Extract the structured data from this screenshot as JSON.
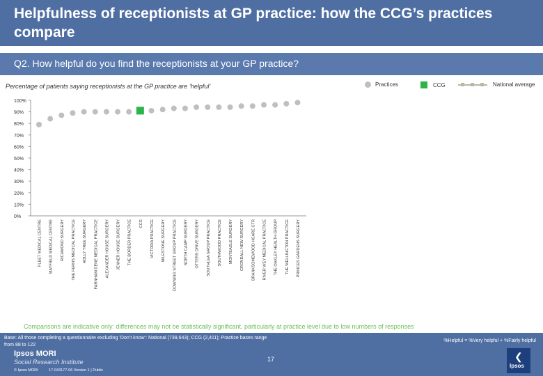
{
  "header": {
    "title": "Helpfulness of receptionists at GP practice: how the CCG’s practices compare",
    "question": "Q2. How helpful do you find the receptionists at your GP practice?"
  },
  "subtitle": "Percentage of patients saying receptionists at the GP practice are ‘helpful’",
  "legend": {
    "practices": "Practices",
    "ccg": "CCG",
    "national": "National average"
  },
  "colors": {
    "practice_dot": "#bfbfbf",
    "ccg": "#2db34a",
    "national": "#b7b9a4",
    "band": "#4f6fa3",
    "note": "#6bbf59"
  },
  "chart_data": {
    "type": "scatter",
    "title": "Percentage of patients saying receptionists at the GP practice are ‘helpful’",
    "ylabel": "",
    "ylim": [
      0,
      100
    ],
    "yticks": [
      "0%",
      "10%",
      "20%",
      "30%",
      "40%",
      "50%",
      "60%",
      "70%",
      "80%",
      "90%",
      "100%"
    ],
    "categories": [
      "FLEET MEDICAL CENTRE",
      "MAYFIELD MEDICAL CENTRE",
      "RICHMOND SURGERY",
      "THE FERNS MEDICAL PRACTICE",
      "HOLLY TREE SURGERY",
      "FARNHAM DENE MEDICAL PRACTICE",
      "ALEXANDER HOUSE SURGERY",
      "JENNER HOUSE SURGERY",
      "THE BORDER PRACTICE",
      "CCG",
      "VICTORIA PRACTICE",
      "MILESTONE SURGERY",
      "DOWNING STREET GROUP PRACTICE",
      "NORTH CAMP SURGERY",
      "OTTERS DRIVE SURGERY",
      "SOUTHLEA GROUP PRACTICE",
      "SOUTHWOOD PRACTICE",
      "MONTEAGLE SURGERY",
      "CRONDALL NEW SURGERY",
      "BRANKSOMEWOOD HCARE CTR",
      "RIVER WEY MEDICAL PRACTICE",
      "THE OAKLEY HEALTH GROUP",
      "THE WELLINGTON PRACTICE",
      "PRINCES GARDENS SURGERY"
    ],
    "values": [
      79,
      84,
      87,
      89,
      90,
      90,
      90,
      90,
      90,
      91,
      91,
      92,
      93,
      93,
      94,
      94,
      94,
      94,
      95,
      95,
      96,
      96,
      97,
      98
    ],
    "ccg_index": 9,
    "national_average": null
  },
  "note": "Comparisons are indicative only: differences may not be statistically significant, particularly at practice level due to low numbers of responses",
  "footer": {
    "base": "Base: All those completing a questionnaire excluding ‘Don’t know’: National (739,643); CCG (2,411); Practice bases range from 88 to 122",
    "help_def": "%Helpful = %Very helpful + %Fairly helpful",
    "page": "17",
    "brand": "Ipsos MORI",
    "brand_sub": "Social Research Institute",
    "copyright": "© Ipsos MORI",
    "version": "17-043177-06 Version 1 | Public",
    "logo_text": "Ipsos"
  }
}
